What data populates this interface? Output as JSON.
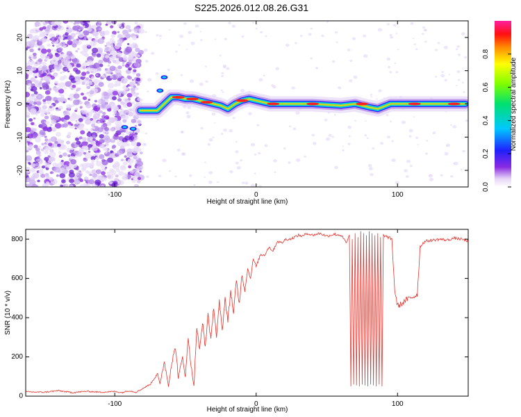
{
  "title": "S225.2026.012.08.26.G31",
  "chart_data": [
    {
      "type": "heatmap",
      "name": "spectrogram",
      "xlabel": "Height of straight line (km)",
      "ylabel": "Frequency (Hz)",
      "xlim": [
        -163,
        150
      ],
      "ylim": [
        -25,
        25
      ],
      "xticks": [
        -100,
        0,
        100
      ],
      "yticks": [
        -20,
        -10,
        0,
        10,
        20
      ],
      "colorbar": {
        "label": "Normalized spectral amplitude",
        "range": [
          0,
          1
        ],
        "ticks": [
          "0.0",
          "0.2",
          "0.4",
          "0.6",
          "0.8"
        ]
      },
      "ridge": {
        "x": [
          -82,
          -75,
          -70,
          -65,
          -60,
          -55,
          -50,
          -45,
          -40,
          -35,
          -30,
          -25,
          -20,
          -15,
          -10,
          -5,
          0,
          10,
          20,
          40,
          60,
          70,
          80,
          86,
          95,
          110,
          130,
          148
        ],
        "y": [
          -2,
          -2,
          -2,
          0,
          2,
          2,
          1.5,
          1.5,
          1,
          0.5,
          0,
          -0.5,
          -1.5,
          0,
          1,
          1.5,
          1,
          0,
          0,
          0,
          -0.5,
          0,
          -1,
          -1.5,
          0,
          0,
          0,
          0
        ]
      }
    },
    {
      "type": "line",
      "name": "snr",
      "xlabel": "Height of straight line (km)",
      "ylabel": "SNR (10 * v/v)",
      "xlim": [
        -163,
        150
      ],
      "ylim": [
        0,
        850
      ],
      "xticks": [
        -100,
        0,
        100
      ],
      "yticks": [
        0,
        200,
        400,
        600,
        800
      ],
      "color": "#e8312a",
      "x": [
        -163,
        -150,
        -140,
        -130,
        -120,
        -110,
        -100,
        -95,
        -90,
        -85,
        -80,
        -75,
        -72,
        -70,
        -68,
        -65,
        -62,
        -60,
        -57,
        -55,
        -52,
        -50,
        -48,
        -46,
        -44,
        -42,
        -40,
        -38,
        -36,
        -34,
        -32,
        -30,
        -28,
        -26,
        -24,
        -22,
        -20,
        -18,
        -16,
        -14,
        -12,
        -10,
        -8,
        -6,
        -4,
        -2,
        0,
        3,
        6,
        9,
        12,
        15,
        18,
        21,
        24,
        27,
        30,
        33,
        36,
        40,
        45,
        50,
        55,
        60,
        64,
        66,
        67,
        68,
        69,
        70,
        71,
        72,
        73,
        74,
        75,
        76,
        77,
        78,
        79,
        80,
        81,
        82,
        83,
        84,
        85,
        86,
        87,
        88,
        89,
        90,
        93,
        96,
        98,
        100,
        103,
        106,
        109,
        112,
        114,
        116,
        118,
        120,
        125,
        130,
        135,
        140,
        145,
        150
      ],
      "y": [
        22,
        20,
        28,
        18,
        25,
        20,
        24,
        18,
        28,
        20,
        40,
        60,
        90,
        120,
        60,
        180,
        50,
        160,
        250,
        90,
        200,
        100,
        300,
        150,
        50,
        350,
        230,
        380,
        250,
        420,
        280,
        460,
        300,
        480,
        330,
        500,
        380,
        540,
        420,
        590,
        470,
        620,
        540,
        650,
        600,
        700,
        660,
        720,
        720,
        760,
        740,
        790,
        780,
        800,
        800,
        810,
        820,
        815,
        830,
        820,
        830,
        815,
        825,
        820,
        780,
        820,
        50,
        800,
        60,
        830,
        55,
        810,
        50,
        840,
        60,
        830,
        55,
        820,
        50,
        840,
        60,
        830,
        55,
        820,
        50,
        830,
        60,
        810,
        50,
        820,
        810,
        800,
        540,
        460,
        470,
        490,
        500,
        510,
        520,
        760,
        780,
        790,
        795,
        800,
        795,
        805,
        800,
        790
      ]
    }
  ]
}
